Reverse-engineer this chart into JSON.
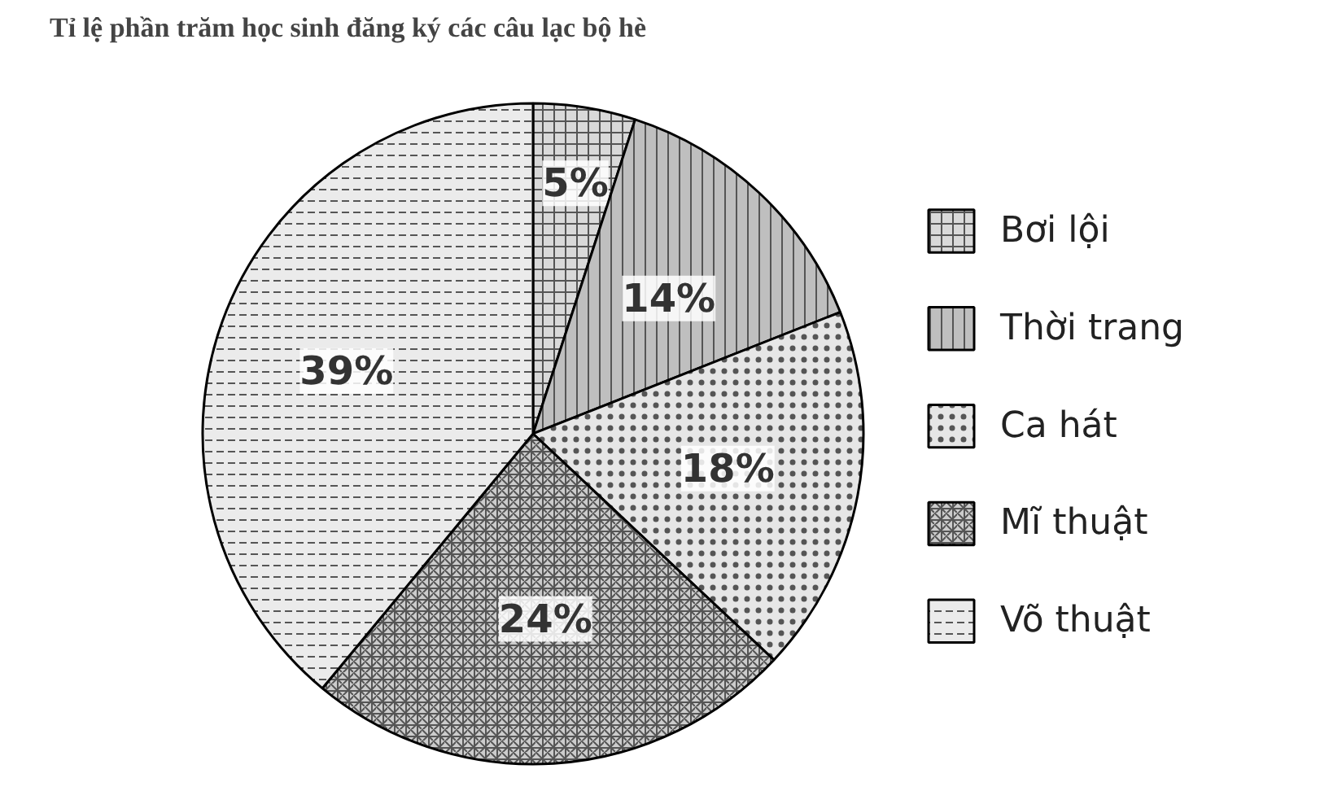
{
  "chart_data": {
    "type": "pie",
    "title": "Tỉ lệ phần trăm học sinh đăng ký các câu lạc bộ hè",
    "categories": [
      "Bơi lội",
      "Thời trang",
      "Ca hát",
      "Mĩ thuật",
      "Võ thuật"
    ],
    "values": [
      5,
      14,
      18,
      24,
      39
    ],
    "colors": [
      "#d9d9d9",
      "#bfbfbf",
      "#e6e6e6",
      "#cccccc",
      "#ebebeb"
    ],
    "value_labels": [
      "5%",
      "14%",
      "18%",
      "24%",
      "39%"
    ],
    "legend": "right"
  }
}
